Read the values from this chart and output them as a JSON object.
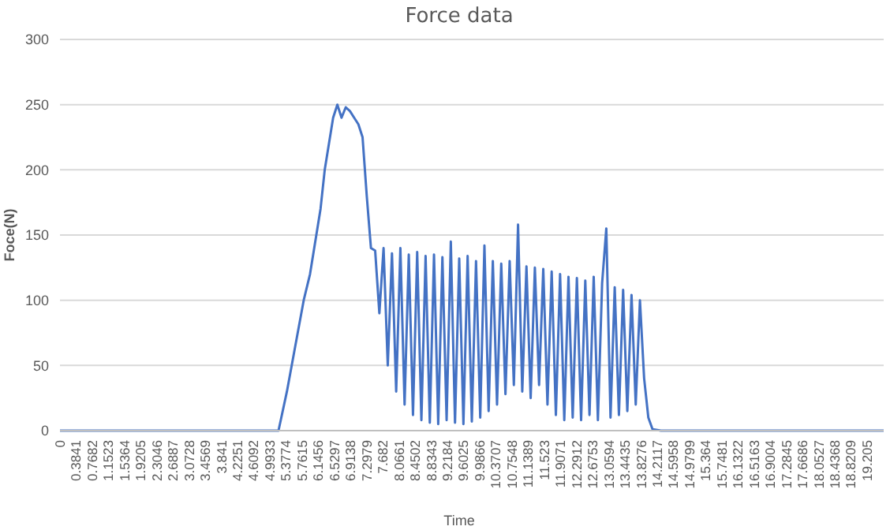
{
  "chart_data": {
    "type": "line",
    "title": "Force data",
    "xlabel": "Time",
    "ylabel": "Foce(N)",
    "x": [
      0,
      5.2,
      5.4,
      5.6,
      5.8,
      5.95,
      6.1,
      6.2,
      6.3,
      6.4,
      6.5,
      6.6,
      6.7,
      6.8,
      6.9,
      7.0,
      7.1,
      7.2,
      7.3,
      7.4,
      7.5,
      7.6,
      7.7,
      7.8,
      7.9,
      8.0,
      8.1,
      8.2,
      8.3,
      8.4,
      8.5,
      8.6,
      8.7,
      8.8,
      8.9,
      9.0,
      9.1,
      9.2,
      9.3,
      9.4,
      9.5,
      9.6,
      9.7,
      9.8,
      9.9,
      10.0,
      10.1,
      10.2,
      10.3,
      10.4,
      10.5,
      10.6,
      10.7,
      10.8,
      10.9,
      11.0,
      11.1,
      11.2,
      11.3,
      11.4,
      11.5,
      11.6,
      11.7,
      11.8,
      11.9,
      12.0,
      12.1,
      12.2,
      12.3,
      12.4,
      12.5,
      12.6,
      12.7,
      12.8,
      12.9,
      13.0,
      13.1,
      13.2,
      13.3,
      13.4,
      13.5,
      13.6,
      13.7,
      13.8,
      13.9,
      14.0,
      14.1,
      14.3,
      19.6
    ],
    "series": [
      {
        "color": "#4472c4",
        "values": [
          0,
          0,
          30,
          65,
          100,
          120,
          150,
          170,
          200,
          220,
          240,
          250,
          240,
          248,
          245,
          240,
          235,
          225,
          180,
          140,
          138,
          90,
          140,
          50,
          136,
          30,
          140,
          20,
          135,
          12,
          137,
          8,
          134,
          6,
          135,
          5,
          133,
          8,
          145,
          6,
          132,
          5,
          134,
          7,
          130,
          10,
          142,
          15,
          130,
          20,
          128,
          28,
          130,
          35,
          158,
          30,
          126,
          25,
          125,
          35,
          124,
          20,
          122,
          12,
          120,
          8,
          118,
          10,
          117,
          8,
          115,
          12,
          118,
          8,
          113,
          155,
          10,
          110,
          12,
          108,
          15,
          104,
          20,
          100,
          40,
          10,
          1,
          0,
          0
        ]
      }
    ],
    "xlim": [
      0,
      19.6
    ],
    "xticks": [
      0,
      0.3841,
      0.7682,
      1.1523,
      1.5364,
      1.9205,
      2.3046,
      2.6887,
      3.0728,
      3.4569,
      3.841,
      4.2251,
      4.6092,
      4.9933,
      5.3774,
      5.7615,
      6.1456,
      6.5297,
      6.9138,
      7.2979,
      7.682,
      8.0661,
      8.4502,
      8.8343,
      9.2184,
      9.6025,
      9.9866,
      10.3707,
      10.7548,
      11.1389,
      11.523,
      11.9071,
      12.2912,
      12.6753,
      13.0594,
      13.4435,
      13.8276,
      14.2117,
      14.5958,
      14.9799,
      15.364,
      15.7481,
      16.1322,
      16.5163,
      16.9004,
      17.2845,
      17.6686,
      18.0527,
      18.4368,
      18.8209,
      19.205
    ],
    "ylim": [
      0,
      300
    ],
    "yticks": [
      0,
      50,
      100,
      150,
      200,
      250,
      300
    ],
    "grid": "y"
  }
}
